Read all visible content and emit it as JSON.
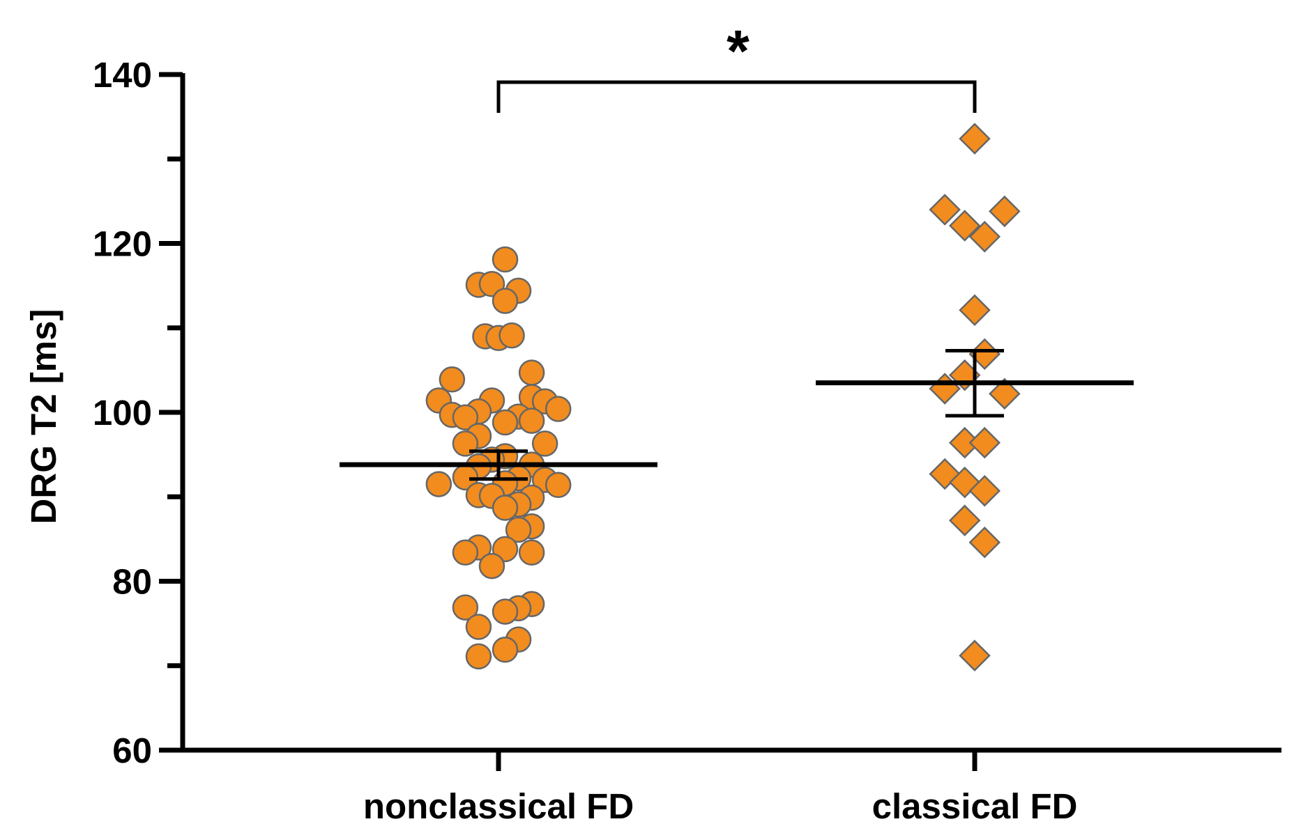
{
  "chart_data": {
    "type": "scatter",
    "ylabel": "DRG T2 [ms]",
    "xlabel": "",
    "ylim": [
      60,
      140
    ],
    "yticks_major": [
      60,
      80,
      100,
      120,
      140
    ],
    "yticks_minor": [
      70,
      90,
      110,
      130
    ],
    "categories": [
      "nonclassical FD",
      "classical FD"
    ],
    "grid": false,
    "legend": "none",
    "colors": {
      "marker_fill": "#F28C1E",
      "marker_edge": "#666666",
      "axis": "#000000"
    },
    "series": [
      {
        "marker": "circle",
        "category": "nonclassical FD",
        "mean": 93.8,
        "error_low": 92.1,
        "error_high": 95.4,
        "points": [
          {
            "y": 118.1,
            "jitter": 0.04
          },
          {
            "y": 115.1,
            "jitter": -0.12
          },
          {
            "y": 115.2,
            "jitter": -0.04
          },
          {
            "y": 114.4,
            "jitter": 0.12
          },
          {
            "y": 113.2,
            "jitter": 0.04
          },
          {
            "y": 109.0,
            "jitter": -0.08
          },
          {
            "y": 108.8,
            "jitter": 0.0
          },
          {
            "y": 109.1,
            "jitter": 0.08
          },
          {
            "y": 104.7,
            "jitter": 0.2
          },
          {
            "y": 103.9,
            "jitter": -0.28
          },
          {
            "y": 101.8,
            "jitter": 0.2
          },
          {
            "y": 101.4,
            "jitter": -0.04
          },
          {
            "y": 101.4,
            "jitter": -0.36
          },
          {
            "y": 101.3,
            "jitter": 0.28
          },
          {
            "y": 100.4,
            "jitter": 0.36
          },
          {
            "y": 100.1,
            "jitter": -0.12
          },
          {
            "y": 99.7,
            "jitter": -0.28
          },
          {
            "y": 99.5,
            "jitter": 0.12
          },
          {
            "y": 99.4,
            "jitter": -0.2
          },
          {
            "y": 99.0,
            "jitter": 0.2
          },
          {
            "y": 98.8,
            "jitter": 0.04
          },
          {
            "y": 97.2,
            "jitter": -0.12
          },
          {
            "y": 96.3,
            "jitter": -0.2
          },
          {
            "y": 96.3,
            "jitter": 0.28
          },
          {
            "y": 94.8,
            "jitter": 0.04
          },
          {
            "y": 94.4,
            "jitter": -0.04
          },
          {
            "y": 93.8,
            "jitter": 0.2
          },
          {
            "y": 93.6,
            "jitter": -0.12
          },
          {
            "y": 92.3,
            "jitter": -0.2
          },
          {
            "y": 92.2,
            "jitter": 0.12
          },
          {
            "y": 92.0,
            "jitter": 0.28
          },
          {
            "y": 91.6,
            "jitter": 0.04
          },
          {
            "y": 91.5,
            "jitter": -0.36
          },
          {
            "y": 91.4,
            "jitter": 0.36
          },
          {
            "y": 90.2,
            "jitter": -0.12
          },
          {
            "y": 90.1,
            "jitter": -0.04
          },
          {
            "y": 89.9,
            "jitter": 0.2
          },
          {
            "y": 89.1,
            "jitter": 0.12
          },
          {
            "y": 88.7,
            "jitter": 0.04
          },
          {
            "y": 86.5,
            "jitter": 0.2
          },
          {
            "y": 86.1,
            "jitter": 0.12
          },
          {
            "y": 84.0,
            "jitter": -0.12
          },
          {
            "y": 83.8,
            "jitter": 0.04
          },
          {
            "y": 83.4,
            "jitter": -0.2
          },
          {
            "y": 83.4,
            "jitter": 0.2
          },
          {
            "y": 81.8,
            "jitter": -0.04
          },
          {
            "y": 77.3,
            "jitter": 0.2
          },
          {
            "y": 76.9,
            "jitter": -0.2
          },
          {
            "y": 76.8,
            "jitter": 0.12
          },
          {
            "y": 76.4,
            "jitter": 0.04
          },
          {
            "y": 74.6,
            "jitter": -0.12
          },
          {
            "y": 73.1,
            "jitter": 0.12
          },
          {
            "y": 71.9,
            "jitter": 0.04
          },
          {
            "y": 71.1,
            "jitter": -0.12
          }
        ]
      },
      {
        "marker": "diamond",
        "category": "classical FD",
        "mean": 103.5,
        "error_low": 99.6,
        "error_high": 107.3,
        "points": [
          {
            "y": 132.4,
            "jitter": 0.0
          },
          {
            "y": 124.0,
            "jitter": -0.18
          },
          {
            "y": 123.8,
            "jitter": 0.18
          },
          {
            "y": 122.1,
            "jitter": -0.06
          },
          {
            "y": 120.8,
            "jitter": 0.06
          },
          {
            "y": 112.1,
            "jitter": 0.0
          },
          {
            "y": 106.9,
            "jitter": 0.06
          },
          {
            "y": 104.4,
            "jitter": -0.06
          },
          {
            "y": 102.8,
            "jitter": -0.18
          },
          {
            "y": 102.2,
            "jitter": 0.18
          },
          {
            "y": 96.4,
            "jitter": -0.06
          },
          {
            "y": 96.4,
            "jitter": 0.06
          },
          {
            "y": 92.7,
            "jitter": -0.18
          },
          {
            "y": 91.7,
            "jitter": -0.06
          },
          {
            "y": 90.7,
            "jitter": 0.06
          },
          {
            "y": 87.2,
            "jitter": -0.06
          },
          {
            "y": 84.6,
            "jitter": 0.06
          },
          {
            "y": 71.2,
            "jitter": 0.0
          }
        ]
      }
    ],
    "annotations": [
      {
        "text": "*",
        "type": "significance",
        "between": [
          "nonclassical FD",
          "classical FD"
        ]
      }
    ]
  }
}
